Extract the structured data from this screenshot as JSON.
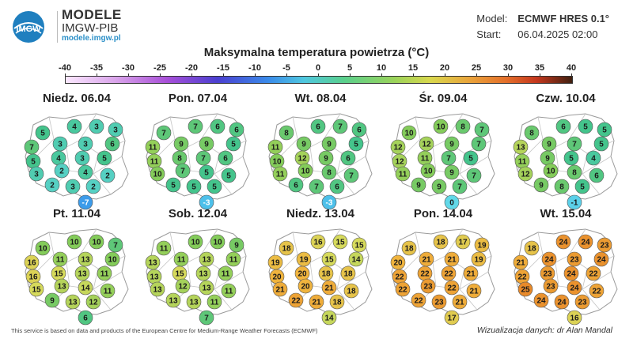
{
  "header": {
    "brand_line1": "MODELE",
    "brand_line2": "IMGW-PIB",
    "brand_url": "modele.imgw.pl",
    "logo_text": "IMGW",
    "model_label": "Model:",
    "model_value": "ECMWF HRES 0.1°",
    "start_label": "Start:",
    "start_value": "06.04.2025 02:00"
  },
  "title": "Maksymalna temperatura powietrza (°C)",
  "scale": {
    "ticks": [
      "-40",
      "-35",
      "-30",
      "-25",
      "-20",
      "-15",
      "-10",
      "-5",
      "0",
      "5",
      "10",
      "15",
      "20",
      "25",
      "30",
      "35",
      "40"
    ],
    "min": -40,
    "max": 40
  },
  "days": [
    {
      "label": "Niedz. 06.04",
      "values": [
        5,
        4,
        3,
        3,
        7,
        3,
        3,
        6,
        5,
        4,
        3,
        5,
        3,
        2,
        4,
        2,
        2,
        3,
        2,
        -7
      ]
    },
    {
      "label": "Pon. 07.04",
      "values": [
        7,
        7,
        6,
        6,
        11,
        9,
        9,
        5,
        11,
        8,
        7,
        6,
        10,
        7,
        5,
        5,
        5,
        5,
        5,
        -3
      ]
    },
    {
      "label": "Wt. 08.04",
      "values": [
        8,
        6,
        7,
        6,
        11,
        9,
        9,
        5,
        10,
        12,
        9,
        6,
        11,
        10,
        8,
        7,
        6,
        7,
        6,
        -3
      ]
    },
    {
      "label": "Śr. 09.04",
      "values": [
        10,
        10,
        8,
        7,
        12,
        12,
        9,
        7,
        12,
        11,
        7,
        5,
        11,
        10,
        9,
        7,
        9,
        9,
        7,
        0
      ]
    },
    {
      "label": "Czw. 10.04",
      "values": [
        8,
        6,
        5,
        5,
        13,
        9,
        7,
        5,
        11,
        9,
        5,
        4,
        12,
        10,
        8,
        6,
        9,
        8,
        5,
        -1
      ]
    },
    {
      "label": "Pt. 11.04",
      "values": [
        10,
        10,
        10,
        7,
        16,
        11,
        13,
        10,
        16,
        15,
        13,
        11,
        15,
        13,
        14,
        11,
        9,
        13,
        12,
        6
      ]
    },
    {
      "label": "Sob. 12.04",
      "values": [
        11,
        10,
        10,
        9,
        13,
        11,
        13,
        11,
        13,
        15,
        13,
        11,
        13,
        12,
        13,
        11,
        13,
        13,
        11,
        7
      ]
    },
    {
      "label": "Niedz. 13.04",
      "values": [
        18,
        16,
        15,
        15,
        19,
        19,
        15,
        14,
        20,
        20,
        18,
        18,
        21,
        20,
        21,
        18,
        22,
        21,
        18,
        14
      ]
    },
    {
      "label": "Pon. 14.04",
      "values": [
        18,
        18,
        17,
        19,
        20,
        21,
        21,
        19,
        22,
        22,
        22,
        21,
        22,
        23,
        22,
        21,
        22,
        23,
        21,
        17
      ]
    },
    {
      "label": "Wt. 15.04",
      "values": [
        18,
        24,
        24,
        23,
        21,
        24,
        23,
        24,
        22,
        23,
        24,
        22,
        25,
        23,
        24,
        22,
        24,
        24,
        23,
        16
      ]
    }
  ],
  "footer_text": "This service is based on data and products of the European Centre for Medium-Range Weather Forecasts (ECMWF)",
  "credit": "Wizualizacja danych: dr Alan Mandal"
}
